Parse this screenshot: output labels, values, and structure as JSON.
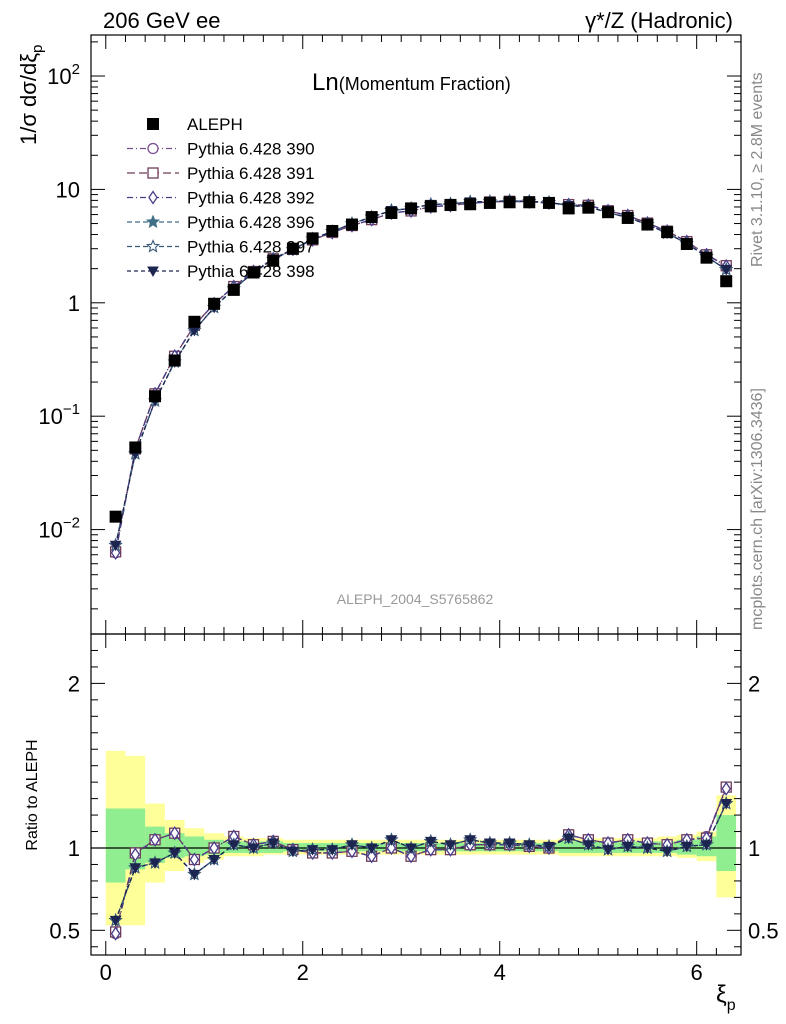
{
  "header": {
    "left": "206 GeV ee",
    "right": "γ*/Z (Hadronic)"
  },
  "main_title": {
    "symbol": "Ln",
    "sub": "(Momentum Fraction)"
  },
  "watermark": "ALEPH_2004_S5765862",
  "side_labels": {
    "rivet": "Rivet 3.1.10, ≥ 2.8M events",
    "mcplots": "mcplots.cern.ch [arXiv:1306.3436]"
  },
  "chart_data": {
    "type": "scatter",
    "upper": {
      "ylabel": "1/σ dσ/dξp",
      "yscale": "log",
      "ylim": [
        0.0012,
        230
      ],
      "yticks": [
        {
          "value": 0.01,
          "base": "10",
          "exp": "−2"
        },
        {
          "value": 0.1,
          "base": "10",
          "exp": "−1"
        },
        {
          "value": 1,
          "base": "1",
          "exp": ""
        },
        {
          "value": 10,
          "base": "10",
          "exp": ""
        },
        {
          "value": 100,
          "base": "10",
          "exp": "2"
        }
      ]
    },
    "lower": {
      "ylabel": "Ratio to ALEPH",
      "ylim": [
        0.35,
        2.3
      ],
      "yticks": [
        "0.5",
        "1",
        "2"
      ]
    },
    "xlabel": "ξp",
    "xlim": [
      -0.15,
      6.45
    ],
    "xticks": [
      "0",
      "2",
      "4",
      "6"
    ],
    "x": [
      0.1,
      0.3,
      0.5,
      0.7,
      0.9,
      1.1,
      1.3,
      1.5,
      1.7,
      1.9,
      2.1,
      2.3,
      2.5,
      2.7,
      2.9,
      3.1,
      3.3,
      3.5,
      3.7,
      3.9,
      4.1,
      4.3,
      4.5,
      4.7,
      4.9,
      5.1,
      5.3,
      5.5,
      5.7,
      5.9,
      6.1,
      6.3
    ],
    "data": {
      "name": "ALEPH",
      "values": [
        0.013,
        0.053,
        0.15,
        0.31,
        0.68,
        0.98,
        1.3,
        1.85,
        2.35,
        3.0,
        3.7,
        4.3,
        4.9,
        5.7,
        6.2,
        6.8,
        7.1,
        7.3,
        7.4,
        7.6,
        7.7,
        7.7,
        7.6,
        6.8,
        6.9,
        6.3,
        5.6,
        4.9,
        4.2,
        3.3,
        2.5,
        1.55
      ],
      "band_inner": [
        [
          0.79,
          1.24
        ],
        [
          0.87,
          1.24
        ],
        [
          0.91,
          1.13
        ],
        [
          0.94,
          1.09
        ],
        [
          0.95,
          1.07
        ],
        [
          0.96,
          1.05
        ],
        [
          0.97,
          1.04
        ],
        [
          0.97,
          1.04
        ],
        [
          0.97,
          1.04
        ],
        [
          0.98,
          1.03
        ],
        [
          0.98,
          1.03
        ],
        [
          0.98,
          1.03
        ],
        [
          0.98,
          1.03
        ],
        [
          0.98,
          1.03
        ],
        [
          0.98,
          1.03
        ],
        [
          0.98,
          1.03
        ],
        [
          0.98,
          1.03
        ],
        [
          0.98,
          1.03
        ],
        [
          0.98,
          1.03
        ],
        [
          0.98,
          1.03
        ],
        [
          0.98,
          1.03
        ],
        [
          0.98,
          1.03
        ],
        [
          0.98,
          1.03
        ],
        [
          0.97,
          1.04
        ],
        [
          0.97,
          1.04
        ],
        [
          0.97,
          1.04
        ],
        [
          0.97,
          1.04
        ],
        [
          0.97,
          1.04
        ],
        [
          0.97,
          1.04
        ],
        [
          0.96,
          1.05
        ],
        [
          0.95,
          1.07
        ],
        [
          0.86,
          1.2
        ]
      ],
      "band_outer": [
        [
          0.53,
          1.59
        ],
        [
          0.53,
          1.56
        ],
        [
          0.79,
          1.27
        ],
        [
          0.86,
          1.17
        ],
        [
          0.91,
          1.12
        ],
        [
          0.93,
          1.09
        ],
        [
          0.95,
          1.07
        ],
        [
          0.95,
          1.06
        ],
        [
          0.96,
          1.06
        ],
        [
          0.96,
          1.05
        ],
        [
          0.96,
          1.05
        ],
        [
          0.96,
          1.05
        ],
        [
          0.96,
          1.05
        ],
        [
          0.96,
          1.05
        ],
        [
          0.96,
          1.05
        ],
        [
          0.96,
          1.05
        ],
        [
          0.96,
          1.05
        ],
        [
          0.96,
          1.05
        ],
        [
          0.96,
          1.05
        ],
        [
          0.96,
          1.05
        ],
        [
          0.96,
          1.05
        ],
        [
          0.96,
          1.05
        ],
        [
          0.96,
          1.05
        ],
        [
          0.95,
          1.06
        ],
        [
          0.95,
          1.06
        ],
        [
          0.95,
          1.06
        ],
        [
          0.95,
          1.06
        ],
        [
          0.95,
          1.06
        ],
        [
          0.95,
          1.07
        ],
        [
          0.94,
          1.08
        ],
        [
          0.92,
          1.1
        ],
        [
          0.7,
          1.32
        ]
      ]
    },
    "series": [
      {
        "name": "Pythia 6.428 390",
        "color": "#7a4f8f",
        "dash": "6,3,1,3",
        "marker": "circle",
        "ratio": [
          0.48,
          0.97,
          1.05,
          1.09,
          0.93,
          1.0,
          1.07,
          1.02,
          1.04,
          0.99,
          0.97,
          0.97,
          0.98,
          0.95,
          1.0,
          0.95,
          0.99,
          0.99,
          1.02,
          1.02,
          1.02,
          1.01,
          1.0,
          1.08,
          1.05,
          1.03,
          1.05,
          1.03,
          1.02,
          1.05,
          1.07,
          1.37
        ]
      },
      {
        "name": "Pythia 6.428 391",
        "color": "#6e3c5a",
        "dash": "8,4",
        "marker": "square",
        "ratio": [
          0.49,
          0.97,
          1.05,
          1.09,
          0.93,
          1.0,
          1.07,
          1.02,
          1.04,
          0.99,
          0.97,
          0.97,
          0.98,
          0.95,
          1.0,
          0.95,
          0.99,
          0.99,
          1.02,
          1.02,
          1.02,
          1.01,
          1.0,
          1.08,
          1.05,
          1.03,
          1.05,
          1.03,
          1.02,
          1.05,
          1.06,
          1.37
        ]
      },
      {
        "name": "Pythia 6.428 392",
        "color": "#4a3d8a",
        "dash": "6,3,1,3",
        "marker": "diamond",
        "ratio": [
          0.48,
          0.96,
          1.05,
          1.09,
          0.93,
          1.0,
          1.07,
          1.02,
          1.04,
          0.99,
          0.97,
          0.97,
          0.98,
          0.95,
          1.0,
          0.95,
          0.99,
          0.99,
          1.02,
          1.02,
          1.02,
          1.01,
          1.0,
          1.08,
          1.05,
          1.03,
          1.05,
          1.03,
          1.02,
          1.05,
          1.06,
          1.36
        ]
      },
      {
        "name": "Pythia 6.428 396",
        "color": "#3e6f86",
        "dash": "5,3",
        "marker": "star6",
        "ratio": [
          0.56,
          0.88,
          0.91,
          0.97,
          0.84,
          0.93,
          1.02,
          1.0,
          1.03,
          0.98,
          0.99,
          0.99,
          1.02,
          1.0,
          1.05,
          1.0,
          1.04,
          1.02,
          1.05,
          1.03,
          1.03,
          1.02,
          1.01,
          1.06,
          1.02,
          0.99,
          1.01,
          1.0,
          0.98,
          1.01,
          1.02,
          1.27
        ]
      },
      {
        "name": "Pythia 6.428 397",
        "color": "#3a5a7a",
        "dash": "5,3",
        "marker": "star",
        "ratio": [
          0.56,
          0.88,
          0.91,
          0.97,
          0.84,
          0.93,
          1.02,
          1.0,
          1.03,
          0.98,
          0.99,
          0.99,
          1.02,
          1.0,
          1.05,
          1.0,
          1.04,
          1.02,
          1.05,
          1.03,
          1.03,
          1.02,
          1.01,
          1.06,
          1.02,
          0.99,
          1.01,
          1.0,
          0.98,
          1.01,
          1.02,
          1.27
        ]
      },
      {
        "name": "Pythia 6.428 398",
        "color": "#1c2450",
        "dash": "4,3",
        "marker": "triangle-down",
        "ratio": [
          0.56,
          0.88,
          0.91,
          0.97,
          0.84,
          0.93,
          1.02,
          1.0,
          1.03,
          0.98,
          0.99,
          0.99,
          1.02,
          1.0,
          1.05,
          1.0,
          1.04,
          1.02,
          1.05,
          1.03,
          1.03,
          1.02,
          1.01,
          1.06,
          1.02,
          0.99,
          1.01,
          1.0,
          0.98,
          1.01,
          1.02,
          1.27
        ]
      }
    ],
    "colors": {
      "band_inner": "#90ee90",
      "band_outer": "#ffff99"
    },
    "legend_placement": "top-left"
  }
}
